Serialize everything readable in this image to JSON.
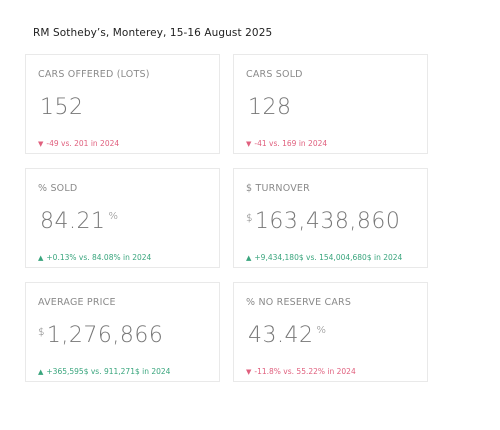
{
  "title": "RM Sotheby’s, Monterey, 15-16 August 2025",
  "colors": {
    "down": "#e0607e",
    "up": "#39a57d"
  },
  "cards": [
    {
      "label": "CARS OFFERED (LOTS)",
      "prefix": "",
      "value": "152",
      "suffix": "",
      "direction": "down",
      "arrow": "▼",
      "delta": "-49 vs. 201 in 2024"
    },
    {
      "label": "CARS SOLD",
      "prefix": "",
      "value": "128",
      "suffix": "",
      "direction": "down",
      "arrow": "▼",
      "delta": "-41 vs. 169 in 2024"
    },
    {
      "label": "% SOLD",
      "prefix": "",
      "value": "84.21",
      "suffix": "%",
      "direction": "up",
      "arrow": "▲",
      "delta": "+0.13% vs. 84.08% in 2024"
    },
    {
      "label": "$ TURNOVER",
      "prefix": "$",
      "value": "163,438,860",
      "suffix": "",
      "direction": "up",
      "arrow": "▲",
      "delta": "+9,434,180$ vs. 154,004,680$ in 2024"
    },
    {
      "label": "AVERAGE PRICE",
      "prefix": "$",
      "value": "1,276,866",
      "suffix": "",
      "direction": "up",
      "arrow": "▲",
      "delta": "+365,595$ vs. 911,271$ in 2024"
    },
    {
      "label": "% NO RESERVE CARS",
      "prefix": "",
      "value": "43.42",
      "suffix": "%",
      "direction": "down",
      "arrow": "▼",
      "delta": "-11.8% vs. 55.22% in 2024"
    }
  ]
}
